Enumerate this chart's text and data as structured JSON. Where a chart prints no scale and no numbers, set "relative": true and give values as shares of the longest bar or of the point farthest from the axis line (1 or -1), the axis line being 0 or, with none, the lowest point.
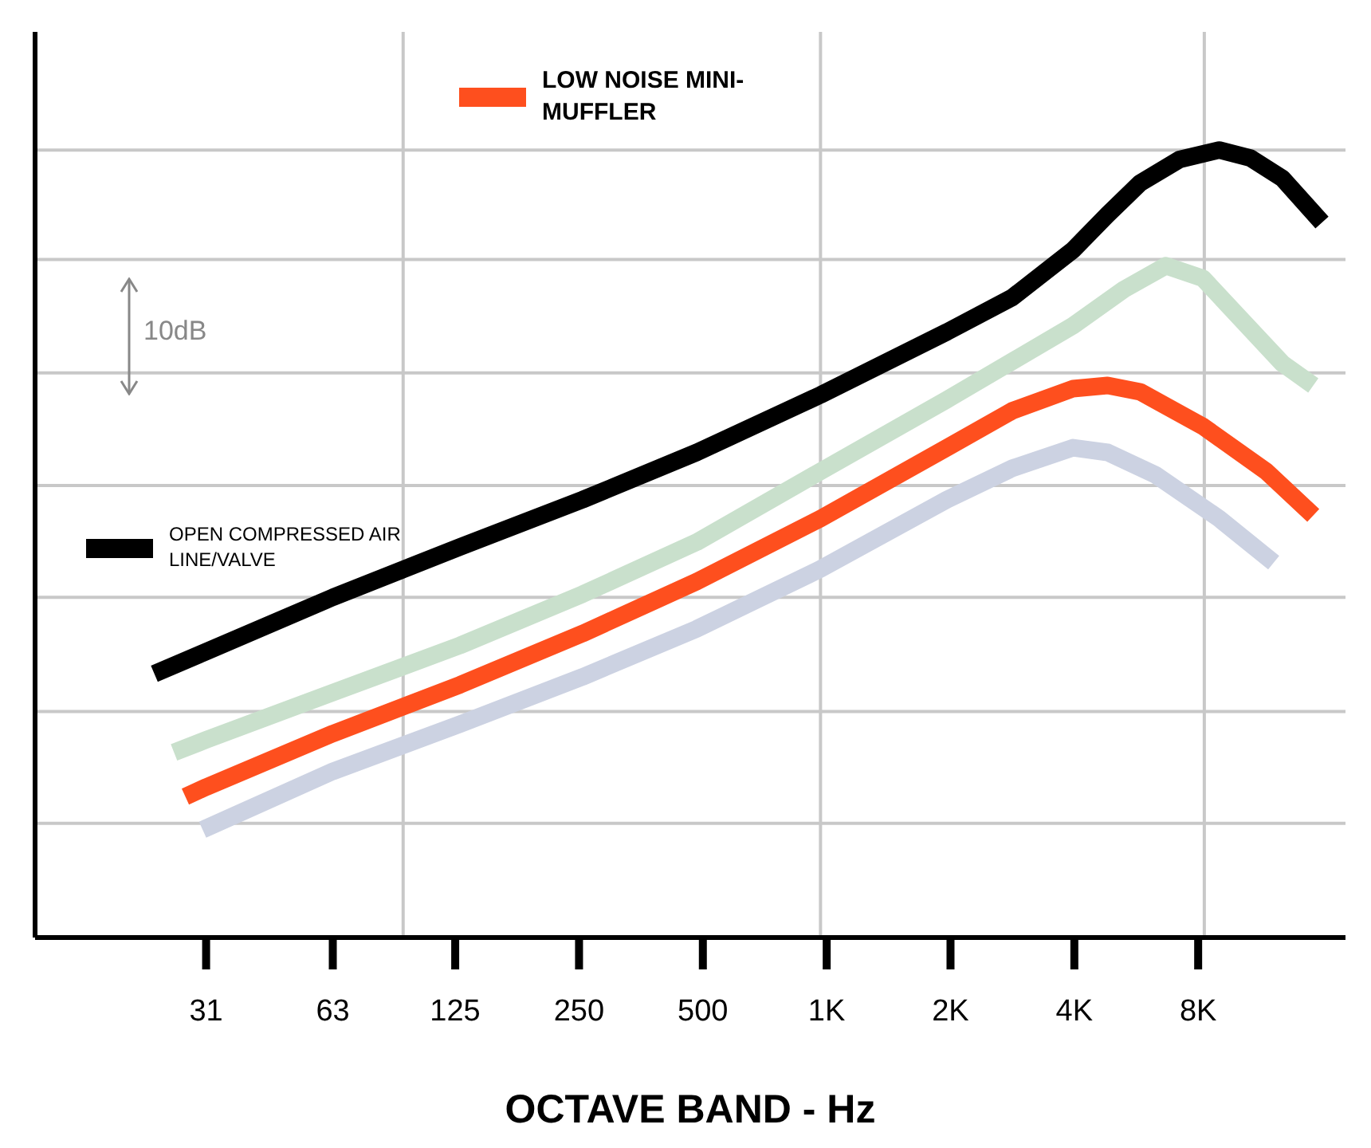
{
  "chart_data": {
    "type": "line",
    "relative": true,
    "xlabel": "OCTAVE BAND - Hz",
    "log": "x",
    "xlim": [
      11.9,
      18250
    ],
    "xticks": [
      31,
      63,
      125,
      250,
      500,
      {
        "value": 1000,
        "label": "1K"
      },
      {
        "value": 2000,
        "label": "2K"
      },
      {
        "value": 4000,
        "label": "4K"
      },
      {
        "value": 8000,
        "label": "8K"
      }
    ],
    "legend": "top",
    "marker": "none",
    "line_style": "solid",
    "annotations": [
      "10dB"
    ],
    "ref_lines": [
      {
        "axis": "y",
        "value": 0.145,
        "color": "#c8c8c8"
      },
      {
        "axis": "y",
        "value": 0.287,
        "color": "#c8c8c8"
      },
      {
        "axis": "y",
        "value": 0.432,
        "color": "#c8c8c8"
      },
      {
        "axis": "y",
        "value": 0.574,
        "color": "#c8c8c8"
      },
      {
        "axis": "y",
        "value": 0.717,
        "color": "#c8c8c8"
      },
      {
        "axis": "y",
        "value": 0.861,
        "color": "#c8c8c8"
      },
      {
        "axis": "y",
        "value": 1,
        "color": "#c8c8c8"
      },
      {
        "axis": "x",
        "value": 93.4,
        "color": "#c8c8c8"
      },
      {
        "axis": "x",
        "value": 966,
        "color": "#c8c8c8"
      },
      {
        "axis": "x",
        "value": 8280,
        "color": "#c8c8c8"
      }
    ],
    "series": [
      {
        "name": "OPEN COMPRESSED AIR LINE/VALVE",
        "color": "#000000",
        "x": [
          23.2,
          31,
          63,
          128.5,
          255,
          483,
          966,
          1960,
          2830,
          3970,
          4820,
          5780,
          7210,
          9000,
          10700,
          12820,
          16000
        ],
        "values": [
          0.335,
          0.363,
          0.432,
          0.496,
          0.556,
          0.616,
          0.689,
          0.769,
          0.813,
          0.873,
          0.918,
          0.958,
          0.988,
          1.0,
          0.99,
          0.964,
          0.908
        ]
      },
      {
        "color": "#c9e0cc",
        "x": [
          25.9,
          31,
          63,
          128.5,
          255,
          483,
          966,
          1960,
          3970,
          5280,
          6680,
          8220,
          10260,
          12820,
          15240
        ],
        "values": [
          0.235,
          0.251,
          0.311,
          0.371,
          0.436,
          0.502,
          0.592,
          0.683,
          0.777,
          0.823,
          0.853,
          0.837,
          0.783,
          0.729,
          0.701
        ]
      },
      {
        "name": "LOW NOISE MINI-MUFFLER",
        "color": "#fe4f1e",
        "x": [
          27.6,
          31,
          63,
          128.5,
          255,
          483,
          966,
          1960,
          2830,
          3970,
          4820,
          5780,
          8220,
          11710,
          15240
        ],
        "values": [
          0.179,
          0.191,
          0.259,
          0.321,
          0.386,
          0.452,
          0.532,
          0.622,
          0.669,
          0.697,
          0.701,
          0.693,
          0.649,
          0.592,
          0.536
        ]
      },
      {
        "color": "#ccd2e2",
        "x": [
          30.4,
          63,
          128.5,
          255,
          483,
          966,
          1960,
          2830,
          3970,
          4820,
          6280,
          9000,
          12210
        ],
        "values": [
          0.137,
          0.211,
          0.271,
          0.331,
          0.392,
          0.468,
          0.556,
          0.596,
          0.622,
          0.616,
          0.588,
          0.532,
          0.476
        ]
      }
    ]
  }
}
